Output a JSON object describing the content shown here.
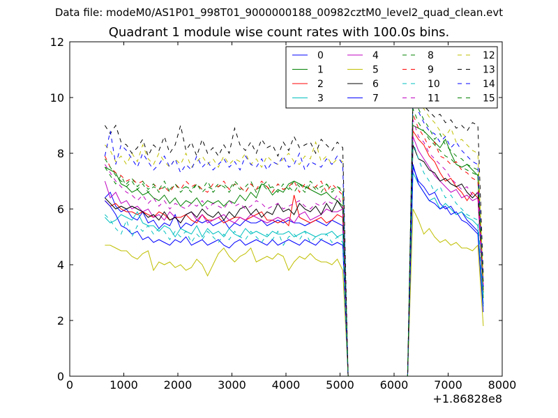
{
  "header": {
    "suptitle": "Data file: modeM0/AS1P01_998T01_9000000188_00982cztM0_level2_quad_clean.evt",
    "title": "Quadrant 1 module wise count rates with 100.0s bins."
  },
  "chart_data": {
    "type": "line",
    "title": "Quadrant 1 module wise count rates with 100.0s bins.",
    "xlabel": "",
    "ylabel": "",
    "xlim": [
      0,
      8000
    ],
    "ylim": [
      0,
      12
    ],
    "x_ticks": [
      0,
      1000,
      2000,
      3000,
      4000,
      5000,
      6000,
      7000,
      8000
    ],
    "y_ticks": [
      0,
      2,
      4,
      6,
      8,
      10,
      12
    ],
    "x_offset_label": "+1.86828e8",
    "grid": false,
    "legend_position": "top-right",
    "legend_columns": 4,
    "bin_seconds": 100,
    "x": [
      650,
      750,
      850,
      950,
      1050,
      1150,
      1250,
      1350,
      1450,
      1550,
      1650,
      1750,
      1850,
      1950,
      2050,
      2150,
      2250,
      2350,
      2450,
      2550,
      2650,
      2750,
      2850,
      2950,
      3050,
      3150,
      3250,
      3350,
      3450,
      3550,
      3650,
      3750,
      3850,
      3950,
      4050,
      4150,
      4250,
      4350,
      4450,
      4550,
      4650,
      4750,
      4850,
      4950,
      5050,
      5150,
      5250,
      6250,
      6350,
      6450,
      6550,
      6650,
      6750,
      6850,
      6950,
      7050,
      7150,
      7250,
      7350,
      7450,
      7550,
      7650
    ],
    "series": [
      {
        "name": "0",
        "color": "#0000ff",
        "dash": "solid",
        "values": [
          6.4,
          6.6,
          6.1,
          5.9,
          6.0,
          5.7,
          5.6,
          5.9,
          5.5,
          5.6,
          5.3,
          5.5,
          5.4,
          5.8,
          5.3,
          5.5,
          5.4,
          5.6,
          5.5,
          5.6,
          5.4,
          5.5,
          5.6,
          5.3,
          5.5,
          5.4,
          5.6,
          5.5,
          5.5,
          5.6,
          5.4,
          5.5,
          5.6,
          5.5,
          5.6,
          5.5,
          5.5,
          5.4,
          5.5,
          5.6,
          5.5,
          5.4,
          5.6,
          5.5,
          5.4,
          0,
          0,
          0,
          7.5,
          7.0,
          6.8,
          6.5,
          6.6,
          6.2,
          6.0,
          6.1,
          5.8,
          5.9,
          5.6,
          5.4,
          5.2,
          2.6
        ]
      },
      {
        "name": "1",
        "color": "#008000",
        "dash": "solid",
        "values": [
          7.5,
          7.4,
          7.3,
          6.9,
          6.8,
          6.6,
          6.7,
          6.5,
          6.6,
          6.4,
          6.3,
          6.5,
          6.2,
          6.4,
          6.1,
          6.3,
          6.2,
          6.4,
          6.1,
          6.3,
          6.2,
          6.3,
          6.1,
          6.3,
          6.2,
          6.5,
          6.3,
          6.6,
          6.4,
          6.9,
          6.8,
          6.5,
          6.7,
          6.6,
          6.9,
          7.0,
          6.9,
          6.8,
          6.7,
          6.6,
          6.5,
          6.6,
          6.4,
          6.3,
          6.1,
          0,
          0,
          0,
          9.0,
          8.9,
          8.8,
          8.6,
          8.4,
          8.2,
          8.5,
          8.0,
          7.6,
          7.5,
          7.6,
          7.4,
          7.2,
          2.8
        ]
      },
      {
        "name": "2",
        "color": "#ff0000",
        "dash": "solid",
        "values": [
          6.3,
          6.1,
          6.2,
          6.0,
          5.9,
          5.9,
          5.8,
          5.9,
          5.8,
          5.7,
          5.9,
          5.8,
          5.6,
          5.7,
          5.7,
          5.8,
          5.6,
          5.5,
          5.8,
          5.6,
          5.6,
          5.7,
          5.5,
          5.6,
          5.7,
          5.7,
          5.6,
          5.7,
          5.8,
          5.9,
          5.6,
          5.6,
          5.5,
          5.6,
          5.4,
          6.5,
          5.7,
          5.6,
          5.5,
          5.6,
          5.7,
          5.5,
          5.6,
          5.8,
          5.7,
          0,
          0,
          0,
          8.8,
          8.5,
          8.3,
          7.9,
          7.7,
          7.3,
          7.0,
          7.1,
          6.8,
          6.6,
          6.3,
          6.6,
          6.4,
          3.0
        ]
      },
      {
        "name": "3",
        "color": "#00bfbf",
        "dash": "solid",
        "values": [
          5.7,
          5.5,
          5.6,
          5.8,
          5.7,
          5.6,
          5.9,
          5.5,
          5.4,
          5.4,
          5.2,
          5.4,
          5.3,
          5.0,
          5.3,
          5.2,
          5.1,
          5.4,
          5.0,
          5.3,
          5.1,
          5.2,
          5.0,
          5.3,
          5.1,
          5.0,
          5.3,
          5.1,
          5.2,
          5.1,
          5.0,
          5.2,
          5.1,
          5.1,
          5.2,
          5.0,
          5.1,
          5.2,
          5.1,
          5.0,
          5.1,
          5.1,
          5.2,
          5.0,
          5.1,
          0,
          0,
          0,
          7.3,
          6.9,
          6.6,
          6.3,
          6.4,
          6.0,
          6.2,
          6.0,
          5.8,
          5.9,
          5.7,
          5.6,
          5.4,
          2.5
        ]
      },
      {
        "name": "4",
        "color": "#bf00bf",
        "dash": "solid",
        "values": [
          7.0,
          6.4,
          6.6,
          6.2,
          6.3,
          6.0,
          6.1,
          5.9,
          6.0,
          5.7,
          5.8,
          5.6,
          5.9,
          5.7,
          5.5,
          5.8,
          5.9,
          5.6,
          5.8,
          5.5,
          5.6,
          5.7,
          5.8,
          5.6,
          5.5,
          5.7,
          5.6,
          5.8,
          5.7,
          5.6,
          5.5,
          5.6,
          5.7,
          5.6,
          5.7,
          5.5,
          5.8,
          5.9,
          5.6,
          5.7,
          5.8,
          6.0,
          5.9,
          5.9,
          6.0,
          0,
          0,
          0,
          8.6,
          8.1,
          7.8,
          7.5,
          7.2,
          7.0,
          6.8,
          6.6,
          6.7,
          6.4,
          6.5,
          6.3,
          6.4,
          3.2
        ]
      },
      {
        "name": "5",
        "color": "#bfbf00",
        "dash": "solid",
        "values": [
          4.7,
          4.7,
          4.6,
          4.5,
          4.5,
          4.3,
          4.2,
          4.4,
          4.5,
          3.8,
          4.1,
          4.0,
          4.1,
          3.9,
          4.0,
          3.8,
          3.9,
          4.2,
          4.0,
          3.6,
          4.0,
          4.4,
          4.6,
          4.3,
          4.1,
          4.3,
          4.4,
          4.6,
          4.1,
          4.2,
          4.3,
          4.2,
          4.4,
          4.3,
          3.8,
          4.1,
          4.3,
          4.2,
          4.4,
          4.2,
          4.1,
          4.1,
          4.0,
          4.2,
          3.8,
          0,
          0,
          0,
          6.0,
          5.6,
          5.1,
          5.3,
          5.0,
          4.8,
          4.9,
          4.7,
          4.8,
          4.6,
          4.6,
          4.5,
          4.7,
          1.8
        ]
      },
      {
        "name": "6",
        "color": "#000000",
        "dash": "solid",
        "values": [
          6.4,
          6.2,
          6.0,
          6.1,
          6.0,
          6.1,
          6.0,
          5.9,
          5.7,
          5.8,
          5.6,
          5.9,
          5.6,
          5.7,
          5.5,
          5.8,
          5.9,
          5.7,
          6.0,
          5.8,
          5.7,
          5.9,
          5.6,
          5.9,
          5.7,
          6.0,
          6.1,
          5.8,
          6.0,
          5.7,
          5.9,
          5.8,
          6.2,
          5.9,
          6.0,
          5.8,
          6.2,
          6.0,
          5.9,
          6.1,
          5.8,
          6.2,
          5.9,
          6.3,
          6.0,
          0,
          0,
          0,
          8.3,
          7.8,
          7.7,
          7.4,
          7.3,
          7.0,
          7.1,
          6.9,
          6.8,
          6.9,
          6.6,
          6.4,
          6.6,
          3.4
        ]
      },
      {
        "name": "7",
        "color": "#0000ff",
        "dash": "solid",
        "values": [
          6.3,
          6.1,
          5.8,
          5.4,
          5.3,
          5.1,
          5.2,
          4.9,
          5.0,
          4.8,
          4.9,
          4.8,
          4.7,
          4.9,
          4.8,
          5.0,
          4.7,
          4.8,
          4.9,
          4.7,
          4.8,
          4.9,
          4.7,
          4.6,
          4.8,
          4.9,
          4.7,
          4.8,
          4.9,
          4.8,
          4.7,
          4.9,
          4.7,
          4.8,
          4.9,
          4.8,
          4.7,
          4.9,
          4.8,
          4.7,
          4.9,
          4.8,
          4.7,
          4.8,
          4.7,
          0,
          0,
          0,
          7.6,
          6.9,
          6.6,
          6.3,
          6.2,
          6.0,
          6.1,
          5.8,
          5.9,
          5.6,
          5.5,
          5.3,
          5.1,
          2.3
        ]
      },
      {
        "name": "8",
        "color": "#008000",
        "dash": "dashed",
        "values": [
          7.5,
          7.2,
          6.9,
          7.2,
          6.8,
          7.0,
          6.7,
          6.9,
          6.6,
          6.8,
          6.7,
          7.0,
          6.6,
          6.9,
          6.7,
          6.8,
          6.6,
          6.9,
          6.7,
          7.0,
          6.6,
          6.8,
          6.9,
          6.7,
          7.0,
          6.8,
          6.6,
          6.9,
          6.7,
          6.8,
          7.0,
          6.6,
          6.9,
          6.7,
          6.8,
          6.6,
          6.9,
          6.7,
          7.0,
          6.8,
          6.6,
          6.9,
          6.7,
          6.8,
          6.6,
          0,
          0,
          0,
          10.2,
          9.6,
          9.2,
          8.9,
          8.5,
          8.7,
          8.3,
          8.1,
          7.9,
          7.8,
          7.6,
          7.5,
          7.4,
          3.0
        ]
      },
      {
        "name": "9",
        "color": "#ff0000",
        "dash": "dashed",
        "values": [
          7.9,
          7.5,
          7.3,
          7.2,
          7.0,
          7.1,
          6.9,
          7.0,
          6.8,
          6.9,
          6.7,
          6.8,
          6.6,
          6.9,
          6.7,
          7.0,
          6.8,
          6.9,
          6.7,
          6.6,
          6.9,
          6.8,
          7.0,
          6.7,
          6.9,
          6.8,
          6.6,
          6.9,
          6.7,
          7.0,
          6.8,
          6.6,
          6.9,
          6.7,
          6.8,
          7.0,
          6.6,
          6.9,
          6.7,
          6.8,
          7.0,
          6.6,
          6.9,
          6.7,
          6.5,
          0,
          0,
          0,
          9.4,
          8.9,
          8.6,
          8.2,
          8.4,
          7.9,
          7.8,
          7.6,
          7.7,
          7.4,
          7.3,
          7.1,
          7.0,
          3.1
        ]
      },
      {
        "name": "10",
        "color": "#00bfbf",
        "dash": "dashed",
        "values": [
          5.8,
          5.6,
          5.3,
          5.1,
          5.6,
          5.0,
          5.4,
          5.2,
          5.4,
          5.1,
          5.3,
          5.2,
          4.9,
          5.2,
          5.0,
          5.2,
          4.8,
          5.1,
          4.9,
          5.2,
          5.0,
          4.8,
          5.1,
          4.9,
          5.2,
          5.0,
          4.9,
          5.2,
          5.0,
          4.8,
          5.1,
          4.9,
          5.2,
          4.7,
          5.0,
          5.1,
          4.9,
          5.2,
          4.8,
          5.0,
          4.9,
          5.1,
          4.8,
          5.0,
          4.8,
          0,
          0,
          0,
          8.4,
          7.8,
          7.3,
          7.0,
          6.6,
          6.8,
          6.4,
          6.5,
          6.2,
          6.0,
          5.8,
          5.7,
          5.6,
          2.9
        ]
      },
      {
        "name": "11",
        "color": "#bf00bf",
        "dash": "dashed",
        "values": [
          7.6,
          7.3,
          7.0,
          6.8,
          6.6,
          6.5,
          6.3,
          6.5,
          6.2,
          6.4,
          6.1,
          6.3,
          6.0,
          6.2,
          6.1,
          6.0,
          6.2,
          6.1,
          6.3,
          6.0,
          6.2,
          6.1,
          6.0,
          6.3,
          6.1,
          6.2,
          6.0,
          6.1,
          6.3,
          6.2,
          6.0,
          6.1,
          6.2,
          6.0,
          6.1,
          6.2,
          6.3,
          6.1,
          6.0,
          6.2,
          6.1,
          6.3,
          6.2,
          6.5,
          6.1,
          0,
          0,
          0,
          9.2,
          8.6,
          8.4,
          8.0,
          7.8,
          7.6,
          7.4,
          7.1,
          6.9,
          6.7,
          6.8,
          6.5,
          6.6,
          3.3
        ]
      },
      {
        "name": "12",
        "color": "#bfbf00",
        "dash": "dashed",
        "values": [
          8.3,
          8.1,
          7.7,
          7.9,
          7.6,
          8.0,
          7.7,
          8.3,
          7.8,
          7.6,
          8.0,
          7.7,
          7.5,
          7.8,
          7.6,
          8.0,
          7.5,
          7.7,
          7.9,
          7.6,
          7.8,
          7.5,
          7.9,
          7.6,
          7.8,
          7.7,
          8.0,
          7.6,
          7.8,
          7.5,
          7.9,
          7.7,
          7.6,
          7.8,
          8.0,
          7.7,
          7.6,
          7.9,
          7.8,
          8.4,
          7.7,
          7.9,
          7.6,
          7.8,
          7.7,
          0,
          0,
          0,
          10.3,
          9.8,
          9.6,
          9.3,
          9.1,
          8.8,
          8.6,
          8.9,
          8.4,
          8.5,
          8.3,
          8.1,
          8.0,
          3.5
        ]
      },
      {
        "name": "13",
        "color": "#000000",
        "dash": "dashed",
        "values": [
          9.0,
          8.7,
          9.0,
          8.4,
          8.3,
          8.0,
          8.2,
          8.5,
          7.9,
          8.3,
          8.1,
          8.6,
          8.0,
          8.3,
          9.0,
          8.1,
          8.4,
          7.9,
          8.5,
          8.0,
          8.2,
          7.9,
          8.3,
          8.0,
          8.9,
          8.3,
          8.1,
          8.4,
          8.0,
          8.5,
          8.2,
          8.3,
          7.9,
          8.4,
          8.1,
          8.6,
          8.2,
          8.3,
          8.4,
          8.0,
          8.5,
          8.3,
          8.1,
          8.4,
          8.2,
          0,
          0,
          0,
          10.0,
          9.9,
          9.7,
          9.5,
          9.3,
          9.4,
          9.1,
          9.2,
          8.9,
          9.0,
          8.8,
          9.1,
          9.0,
          3.6
        ]
      },
      {
        "name": "14",
        "color": "#0000ff",
        "dash": "dashed",
        "values": [
          7.9,
          8.8,
          7.6,
          8.3,
          8.1,
          7.8,
          7.5,
          8.0,
          7.7,
          7.4,
          7.6,
          7.9,
          7.5,
          7.8,
          7.3,
          7.6,
          7.4,
          7.9,
          7.5,
          7.7,
          7.4,
          7.6,
          7.8,
          7.5,
          7.7,
          7.4,
          7.9,
          7.6,
          7.5,
          7.8,
          7.4,
          7.7,
          7.6,
          7.9,
          7.5,
          7.6,
          8.0,
          7.4,
          7.7,
          7.6,
          7.5,
          7.8,
          7.6,
          7.9,
          7.6,
          0,
          0,
          0,
          10.1,
          9.5,
          9.1,
          8.8,
          8.7,
          8.4,
          8.6,
          8.2,
          8.4,
          8.1,
          7.9,
          7.7,
          7.6,
          3.2
        ]
      },
      {
        "name": "15",
        "color": "#008000",
        "dash": "dashed",
        "values": [
          7.8,
          7.5,
          7.2,
          7.0,
          6.9,
          7.1,
          6.8,
          7.0,
          6.7,
          6.9,
          6.6,
          6.8,
          6.7,
          6.9,
          6.6,
          6.8,
          6.7,
          6.9,
          6.6,
          6.8,
          6.7,
          6.9,
          6.8,
          6.6,
          6.9,
          6.7,
          6.8,
          7.0,
          6.6,
          6.9,
          6.7,
          6.8,
          6.6,
          6.9,
          6.7,
          7.0,
          6.8,
          6.6,
          6.9,
          6.7,
          6.8,
          6.9,
          6.6,
          6.8,
          6.7,
          0,
          0,
          0,
          9.6,
          9.1,
          8.8,
          8.5,
          8.3,
          8.1,
          7.9,
          7.8,
          7.6,
          7.5,
          7.4,
          7.3,
          7.2,
          3.1
        ]
      }
    ]
  }
}
